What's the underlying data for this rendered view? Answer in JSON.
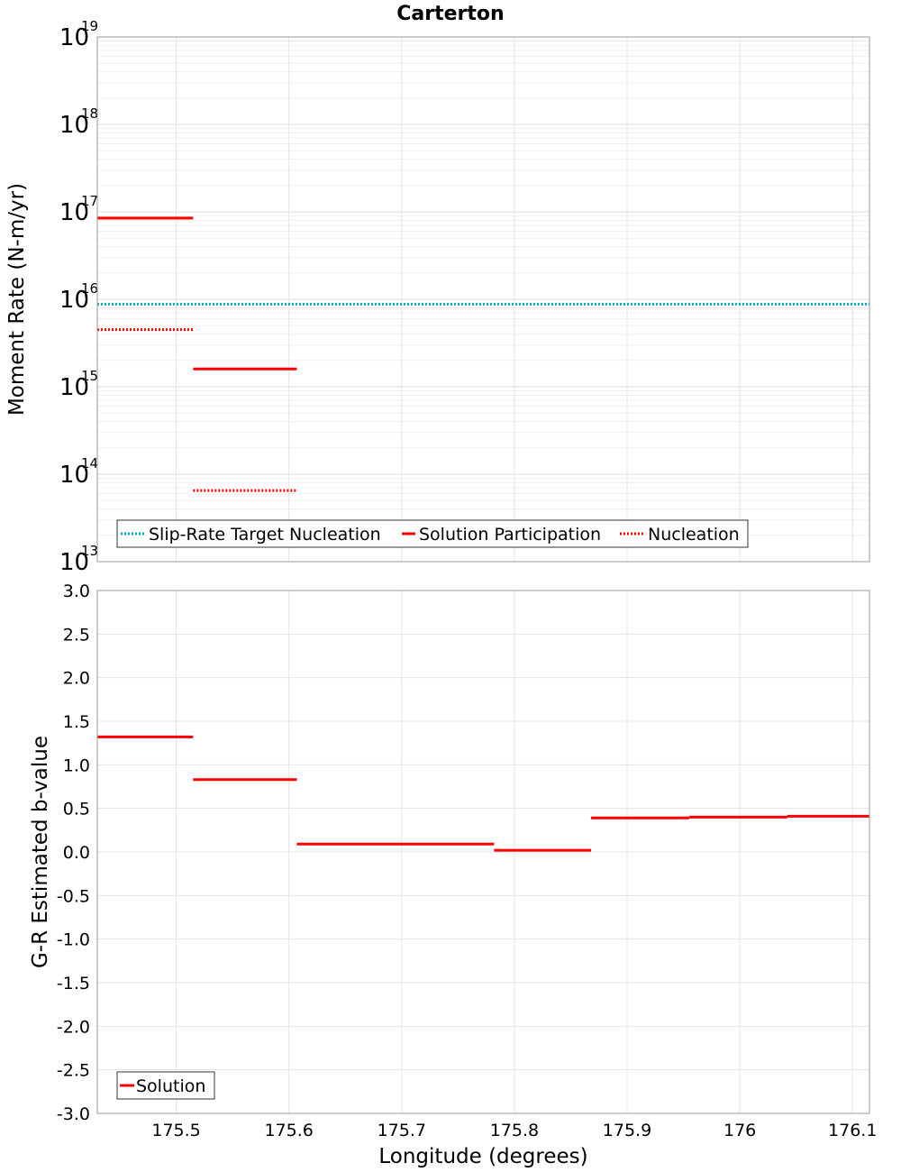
{
  "chart_data": [
    {
      "type": "line",
      "title": "Carterton",
      "ylabel": "Moment Rate (N-m/yr)",
      "yscale": "log",
      "ylim": [
        10000000000000.0,
        1e+19
      ],
      "xlim": [
        175.43,
        176.115
      ],
      "y_tick_exponents": [
        13,
        14,
        15,
        16,
        17,
        18,
        19
      ],
      "y_tick_base": "10",
      "legend_position": "bottom-left",
      "series": [
        {
          "name": "Slip-Rate Target Nucleation",
          "style": "dotted",
          "color": "#00b0c0",
          "segments": [
            {
              "x0": 175.43,
              "x1": 176.115,
              "y": 8800000000000000.0
            }
          ]
        },
        {
          "name": "Solution Participation",
          "style": "solid",
          "color": "#ff0000",
          "segments": [
            {
              "x0": 175.43,
              "x1": 175.515,
              "y": 8.5e+16
            },
            {
              "x0": 175.515,
              "x1": 175.607,
              "y": 1600000000000000.0
            }
          ]
        },
        {
          "name": "Nucleation",
          "style": "dotted",
          "color": "#ff0000",
          "segments": [
            {
              "x0": 175.43,
              "x1": 175.515,
              "y": 4500000000000000.0
            },
            {
              "x0": 175.515,
              "x1": 175.607,
              "y": 65000000000000.0
            }
          ]
        }
      ]
    },
    {
      "type": "line",
      "xlabel": "Longitude (degrees)",
      "ylabel": "G-R Estimated b-value",
      "ylim": [
        -3.0,
        3.0
      ],
      "xlim": [
        175.43,
        176.115
      ],
      "y_ticks": [
        "3.0",
        "2.5",
        "2.0",
        "1.5",
        "1.0",
        "0.5",
        "0.0",
        "-0.5",
        "-1.0",
        "-1.5",
        "-2.0",
        "-2.5",
        "-3.0"
      ],
      "x_ticks": [
        "175.5",
        "175.6",
        "175.7",
        "175.8",
        "175.9",
        "176",
        "176.1"
      ],
      "legend_position": "bottom-left",
      "series": [
        {
          "name": "Solution",
          "style": "solid",
          "color": "#ff0000",
          "segments": [
            {
              "x0": 175.43,
              "x1": 175.515,
              "y": 1.32
            },
            {
              "x0": 175.515,
              "x1": 175.607,
              "y": 0.83
            },
            {
              "x0": 175.607,
              "x1": 175.782,
              "y": 0.09
            },
            {
              "x0": 175.782,
              "x1": 175.868,
              "y": 0.02
            },
            {
              "x0": 175.868,
              "x1": 175.955,
              "y": 0.39
            },
            {
              "x0": 175.955,
              "x1": 176.042,
              "y": 0.4
            },
            {
              "x0": 176.042,
              "x1": 176.115,
              "y": 0.41
            }
          ]
        }
      ]
    }
  ]
}
